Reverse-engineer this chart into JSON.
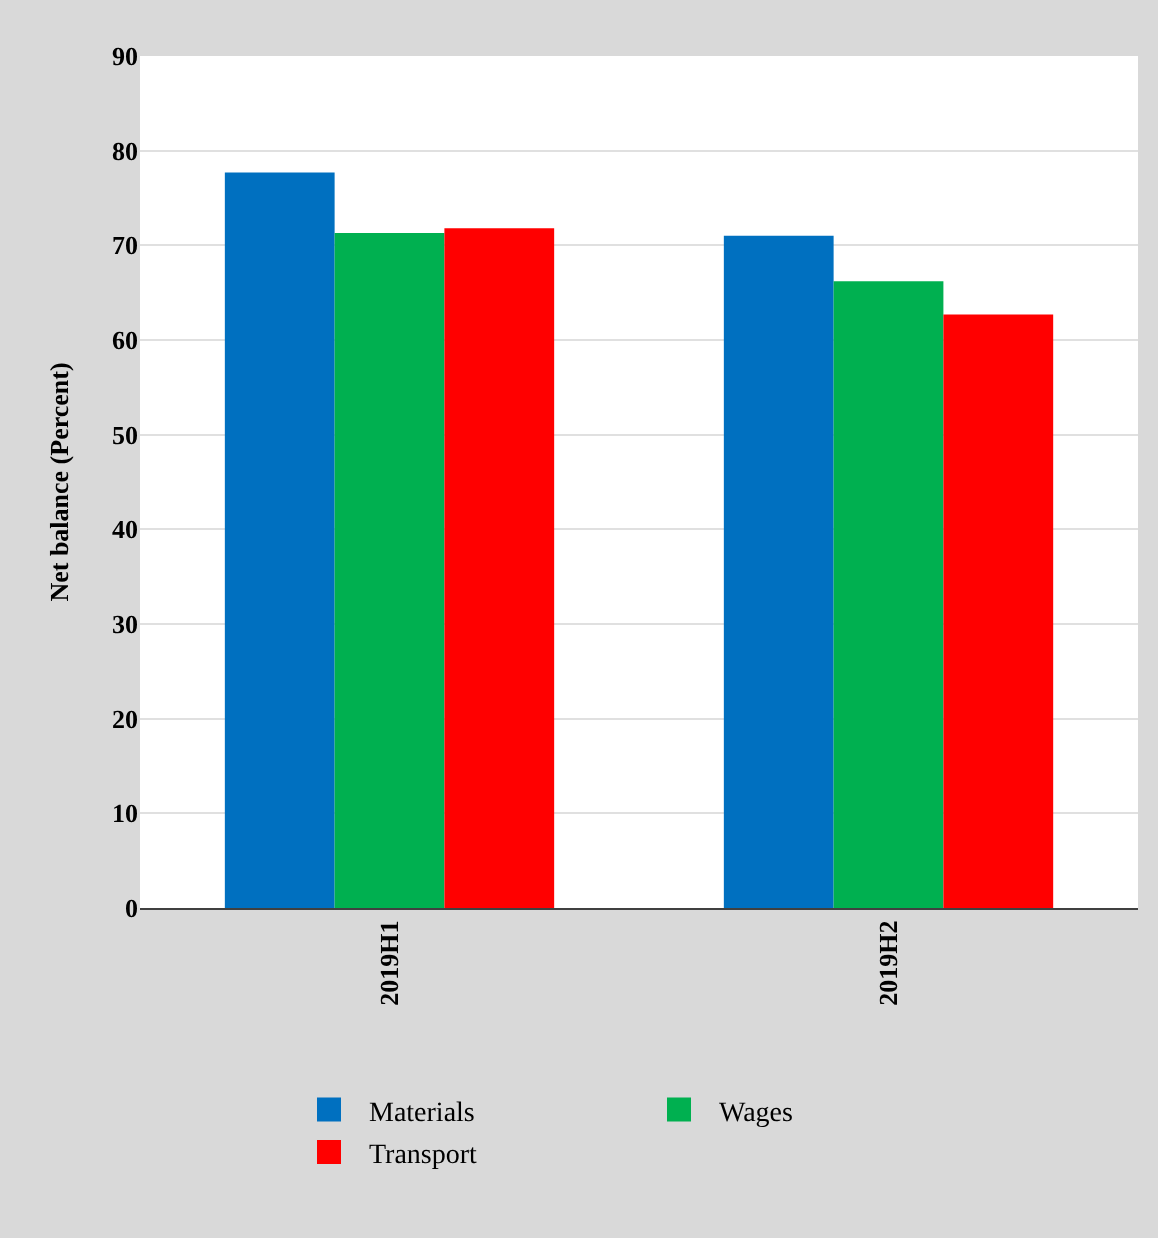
{
  "chart_data": {
    "type": "bar",
    "ylabel": "Net balance (Percent)",
    "categories": [
      "2019H1",
      "2019H2"
    ],
    "series": [
      {
        "name": "Materials",
        "color": "#0070c0",
        "values": [
          77.7,
          71.0
        ]
      },
      {
        "name": "Wages",
        "color": "#00b050",
        "values": [
          71.3,
          66.2
        ]
      },
      {
        "name": "Transport",
        "color": "#ff0000",
        "values": [
          71.8,
          62.7
        ]
      }
    ],
    "ylim": [
      0,
      90
    ],
    "yticks": [
      0,
      10,
      20,
      30,
      40,
      50,
      60,
      70,
      80,
      90
    ],
    "grid": "y",
    "legend": "bottom"
  }
}
